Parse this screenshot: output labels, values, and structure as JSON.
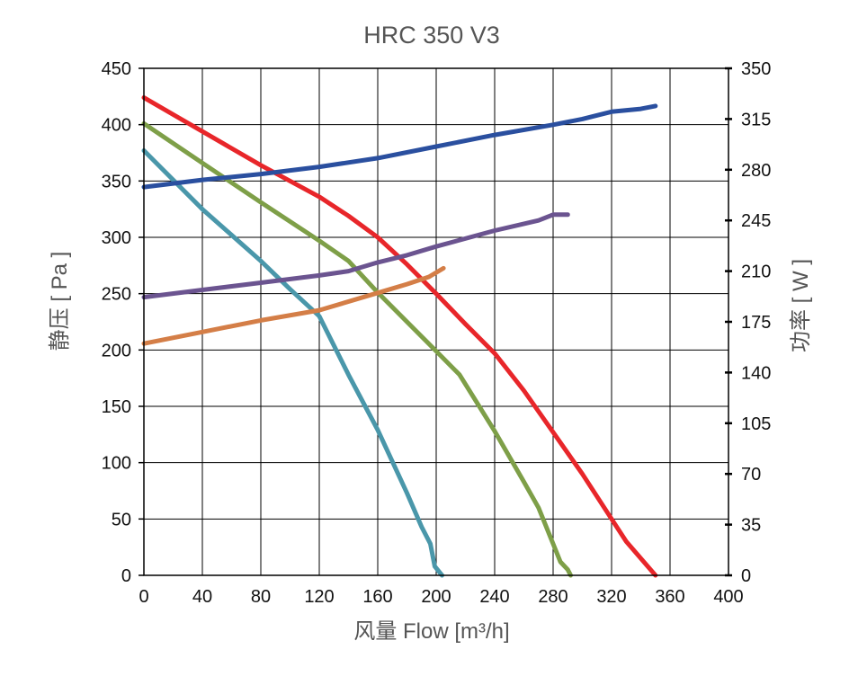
{
  "chart_data": {
    "type": "line",
    "title": "HRC 350 V3",
    "xlabel": "风量 Flow  [m³/h]",
    "ylabel_left": "静压 [ Pa ]",
    "ylabel_right": "功率 [ W ]",
    "xlim": [
      0,
      400
    ],
    "ylim_left": [
      0,
      450
    ],
    "ylim_right": [
      0,
      350
    ],
    "x_ticks": [
      0,
      40,
      80,
      120,
      160,
      200,
      240,
      280,
      320,
      360,
      400
    ],
    "y_left_ticks": [
      0,
      50,
      100,
      150,
      200,
      250,
      300,
      350,
      400,
      450
    ],
    "y_right_ticks": [
      0,
      35,
      70,
      105,
      140,
      175,
      210,
      245,
      280,
      315,
      350
    ],
    "grid": true,
    "legend": "none",
    "series": [
      {
        "axis": "left",
        "color": "#e8262a",
        "points": [
          [
            0,
            424
          ],
          [
            40,
            394
          ],
          [
            80,
            364
          ],
          [
            120,
            336
          ],
          [
            140,
            319
          ],
          [
            160,
            300
          ],
          [
            180,
            276
          ],
          [
            200,
            250
          ],
          [
            220,
            223
          ],
          [
            240,
            197
          ],
          [
            260,
            164
          ],
          [
            280,
            127
          ],
          [
            300,
            90
          ],
          [
            320,
            50
          ],
          [
            330,
            30
          ],
          [
            350,
            0
          ]
        ]
      },
      {
        "axis": "left",
        "color": "#7e9f48",
        "points": [
          [
            0,
            401
          ],
          [
            40,
            366
          ],
          [
            80,
            331
          ],
          [
            120,
            297
          ],
          [
            140,
            279
          ],
          [
            160,
            251
          ],
          [
            180,
            225
          ],
          [
            200,
            199
          ],
          [
            216,
            178
          ],
          [
            240,
            128
          ],
          [
            260,
            83
          ],
          [
            270,
            60
          ],
          [
            280,
            28
          ],
          [
            285,
            12
          ],
          [
            290,
            5
          ],
          [
            292,
            0
          ]
        ]
      },
      {
        "axis": "left",
        "color": "#4a97aa",
        "points": [
          [
            0,
            377
          ],
          [
            40,
            325
          ],
          [
            80,
            279
          ],
          [
            100,
            254
          ],
          [
            120,
            230
          ],
          [
            140,
            178
          ],
          [
            160,
            129
          ],
          [
            180,
            73
          ],
          [
            190,
            43
          ],
          [
            196,
            28
          ],
          [
            199,
            8
          ],
          [
            204,
            0
          ]
        ]
      },
      {
        "axis": "right",
        "color": "#2a4f9f",
        "points": [
          [
            0,
            268
          ],
          [
            40,
            273
          ],
          [
            80,
            277
          ],
          [
            120,
            282
          ],
          [
            160,
            288
          ],
          [
            200,
            296
          ],
          [
            240,
            304
          ],
          [
            280,
            311
          ],
          [
            300,
            315
          ],
          [
            320,
            320
          ],
          [
            340,
            322
          ],
          [
            350,
            324
          ]
        ]
      },
      {
        "axis": "right",
        "color": "#6b5490",
        "points": [
          [
            0,
            192
          ],
          [
            40,
            197
          ],
          [
            80,
            202
          ],
          [
            120,
            207
          ],
          [
            140,
            210
          ],
          [
            160,
            216
          ],
          [
            180,
            221
          ],
          [
            200,
            227
          ],
          [
            240,
            238
          ],
          [
            270,
            245
          ],
          [
            280,
            249
          ],
          [
            290,
            249
          ]
        ]
      },
      {
        "axis": "right",
        "color": "#d47e47",
        "points": [
          [
            0,
            160
          ],
          [
            40,
            168
          ],
          [
            80,
            176
          ],
          [
            120,
            183
          ],
          [
            160,
            195
          ],
          [
            180,
            201
          ],
          [
            195,
            206
          ],
          [
            205,
            212
          ]
        ]
      }
    ]
  }
}
